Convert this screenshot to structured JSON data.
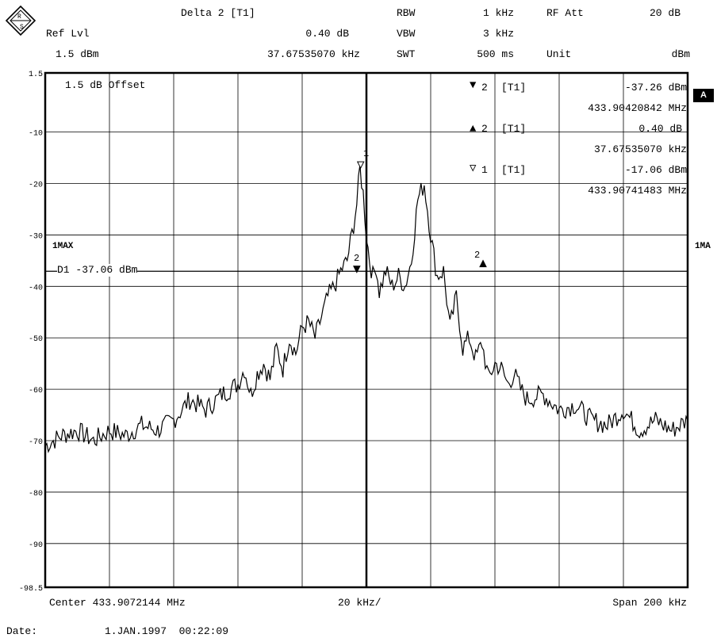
{
  "header": {
    "marker_title": "Delta 2 [T1]",
    "ref_lvl_label": "Ref Lvl",
    "ref_lvl_value": "1.5 dBm",
    "delta_level": "0.40 dB",
    "delta_freq": "37.67535070 kHz",
    "rbw_label": "RBW",
    "rbw_value": "1 kHz",
    "vbw_label": "VBW",
    "vbw_value": "3 kHz",
    "swt_label": "SWT",
    "swt_value": "500 ms",
    "rfatt_label": "RF Att",
    "rfatt_value": "20 dB",
    "unit_label": "Unit",
    "unit_value": "dBm"
  },
  "markers": [
    {
      "sym": "▼",
      "idx": "2",
      "tag": "[T1]",
      "level": "-37.26 dBm",
      "freq": "433.90420842 MHz"
    },
    {
      "sym": "▲",
      "idx": "2",
      "tag": "[T1]",
      "level": "0.40 dB",
      "freq": "37.67535070 kHz"
    },
    {
      "sym": "▽",
      "idx": "1",
      "tag": "[T1]",
      "level": "-17.06 dBm",
      "freq": "433.90741483 MHz"
    }
  ],
  "screen": {
    "offset_label": "1.5 dB Offset",
    "trace_label_left": "1MAX",
    "trace_label_right": "1MA",
    "display_line": "D1 -37.06 dBm",
    "side_badge": "A",
    "marker1_label": "1",
    "marker2_label": "2",
    "marker2_right_label": "2"
  },
  "footer": {
    "center": "Center 433.9072144 MHz",
    "div": "20 kHz/",
    "span": "Span 200 kHz",
    "date_label": "Date:",
    "date_value": "1.JAN.1997  00:22:09"
  },
  "chart_data": {
    "type": "line",
    "xlabel": "",
    "ylabel": "",
    "xlim": [
      -100,
      100
    ],
    "ylim": [
      -98.5,
      1.5
    ],
    "yticks": [
      "1.5",
      "-10",
      "-20",
      "-30",
      "-40",
      "-50",
      "-60",
      "-70",
      "-80",
      "-90",
      "-98.5"
    ],
    "grid": true,
    "display_line_dbm": -37.06,
    "series": [
      {
        "x": [
          -100,
          -95,
          -90,
          -85,
          -80,
          -75,
          -70,
          -65,
          -60,
          -55,
          -50,
          -45,
          -40,
          -38,
          -36,
          -34,
          -32,
          -30,
          -28,
          -26,
          -24,
          -22,
          -20,
          -18,
          -16,
          -14,
          -12,
          -10,
          -8,
          -6,
          -4,
          -3,
          -2,
          -1,
          0,
          1,
          2,
          3,
          4,
          5,
          6,
          8,
          10,
          12,
          14,
          16,
          18,
          20,
          22,
          24,
          26,
          28,
          30,
          32,
          34,
          36,
          38,
          40,
          42,
          44,
          46,
          48,
          50,
          55,
          60,
          65,
          70,
          75,
          80,
          85,
          90,
          95,
          100
        ],
        "y": [
          -71,
          -69,
          -68,
          -70,
          -68,
          -69,
          -67,
          -68,
          -66,
          -62,
          -64,
          -61,
          -59,
          -56,
          -61,
          -57,
          -55,
          -58,
          -52,
          -56,
          -50,
          -53,
          -48,
          -47,
          -50,
          -46,
          -42,
          -40,
          -37,
          -35,
          -28,
          -24,
          -17,
          -22,
          -30,
          -35,
          -38,
          -36,
          -41,
          -39,
          -37,
          -40,
          -38,
          -40,
          -35,
          -23,
          -20,
          -30,
          -38,
          -37,
          -48,
          -42,
          -52,
          -50,
          -54,
          -51,
          -58,
          -55,
          -56,
          -59,
          -57,
          -60,
          -62,
          -61,
          -64,
          -63,
          -66,
          -67,
          -64,
          -68,
          -66,
          -68,
          -66
        ]
      }
    ]
  }
}
